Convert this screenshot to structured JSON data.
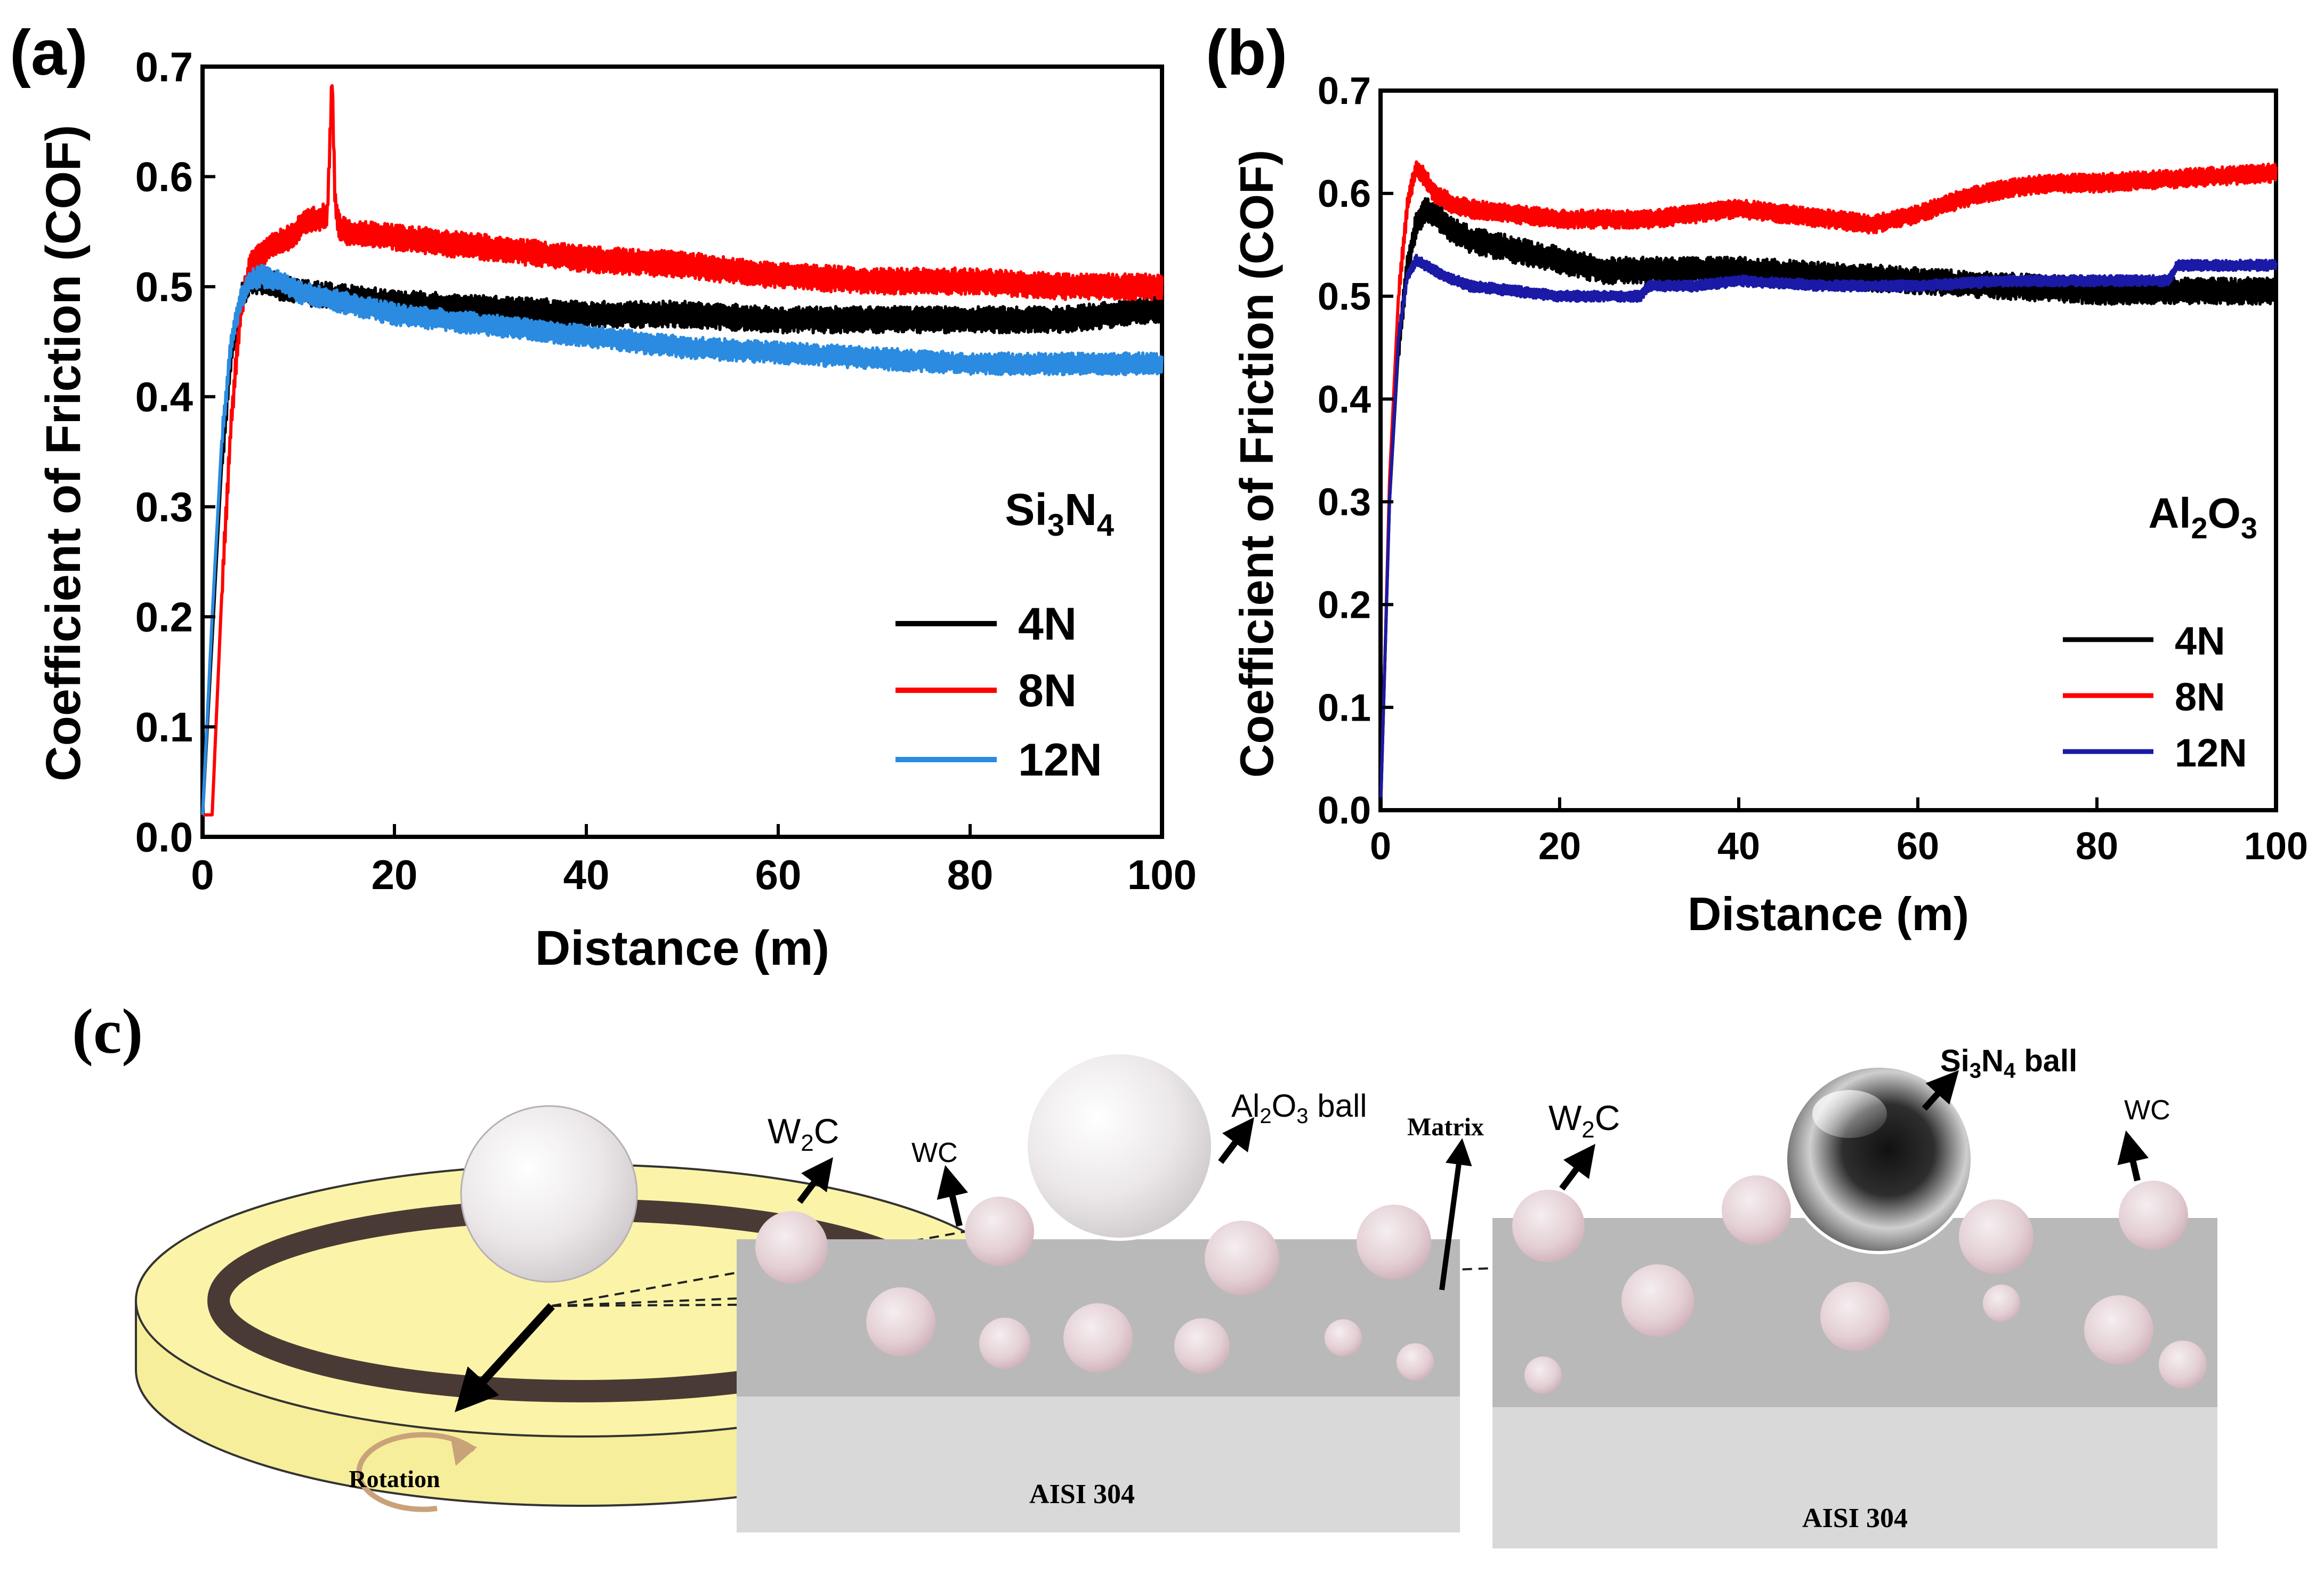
{
  "panel_labels": {
    "a": "(a)",
    "b": "(b)",
    "c": "(c)"
  },
  "chart_data": [
    {
      "type": "line",
      "panel": "(a)",
      "material": {
        "base": "Si",
        "sub1": "3",
        "mid": "N",
        "sub2": "4"
      },
      "xlabel": "Distance (m)",
      "ylabel": "Coefficient of Friction (COF)",
      "xlim": [
        0,
        100
      ],
      "ylim": [
        0,
        0.7
      ],
      "xticks": [
        0,
        20,
        40,
        60,
        80,
        100
      ],
      "yticks": [
        0.0,
        0.1,
        0.2,
        0.3,
        0.4,
        0.5,
        0.6,
        0.7
      ],
      "xtick_labels": [
        "0",
        "20",
        "40",
        "60",
        "80",
        "100"
      ],
      "ytick_labels": [
        "0.0",
        "0.1",
        "0.2",
        "0.3",
        "0.4",
        "0.5",
        "0.6",
        "0.7"
      ],
      "legend_position": "right-middle",
      "series": [
        {
          "name": "4N",
          "color": "#000000",
          "noise": 0.012,
          "x": [
            0,
            1,
            2,
            3,
            4,
            5,
            6,
            8,
            10,
            15,
            20,
            30,
            40,
            50,
            60,
            70,
            80,
            90,
            95,
            100
          ],
          "y": [
            0.02,
            0.18,
            0.34,
            0.44,
            0.49,
            0.505,
            0.505,
            0.5,
            0.495,
            0.49,
            0.485,
            0.48,
            0.475,
            0.475,
            0.47,
            0.47,
            0.47,
            0.47,
            0.475,
            0.48
          ]
        },
        {
          "name": "8N",
          "color": "#ff0000",
          "noise": 0.012,
          "x": [
            0,
            0.5,
            1,
            1.3,
            1.6,
            2,
            3,
            4,
            5,
            7,
            9,
            11,
            13,
            13.5,
            13.8,
            14.2,
            15,
            20,
            30,
            40,
            50,
            60,
            70,
            80,
            90,
            100
          ],
          "y": [
            0.02,
            0.02,
            0.02,
            0.08,
            0.14,
            0.22,
            0.38,
            0.48,
            0.52,
            0.535,
            0.545,
            0.56,
            0.565,
            0.69,
            0.58,
            0.555,
            0.55,
            0.545,
            0.535,
            0.525,
            0.52,
            0.51,
            0.505,
            0.505,
            0.5,
            0.5
          ]
        },
        {
          "name": "12N",
          "color": "#2a8be0",
          "noise": 0.01,
          "x": [
            0,
            1,
            2,
            3,
            4,
            5,
            6,
            8,
            10,
            15,
            20,
            30,
            40,
            50,
            60,
            70,
            80,
            90,
            100
          ],
          "y": [
            0.02,
            0.2,
            0.36,
            0.45,
            0.49,
            0.505,
            0.51,
            0.505,
            0.495,
            0.485,
            0.475,
            0.465,
            0.455,
            0.445,
            0.44,
            0.435,
            0.43,
            0.43,
            0.43
          ]
        }
      ]
    },
    {
      "type": "line",
      "panel": "(b)",
      "material": {
        "base": "Al",
        "sub1": "2",
        "mid": "O",
        "sub2": "3"
      },
      "xlabel": "Distance (m)",
      "ylabel": "Coefficient of Friction (COF)",
      "xlim": [
        0,
        100
      ],
      "ylim": [
        0,
        0.7
      ],
      "xticks": [
        0,
        20,
        40,
        60,
        80,
        100
      ],
      "yticks": [
        0.0,
        0.1,
        0.2,
        0.3,
        0.4,
        0.5,
        0.6,
        0.7
      ],
      "xtick_labels": [
        "0",
        "20",
        "40",
        "60",
        "80",
        "100"
      ],
      "ytick_labels": [
        "0.0",
        "0.1",
        "0.2",
        "0.3",
        "0.4",
        "0.5",
        "0.6",
        "0.7"
      ],
      "legend_position": "bottom-right",
      "series": [
        {
          "name": "4N",
          "color": "#000000",
          "noise": 0.013,
          "x": [
            0,
            0.5,
            1,
            2,
            3,
            4,
            5,
            6,
            8,
            10,
            15,
            20,
            25,
            30,
            40,
            50,
            60,
            70,
            80,
            90,
            100
          ],
          "y": [
            0.0,
            0.15,
            0.3,
            0.45,
            0.53,
            0.57,
            0.585,
            0.58,
            0.565,
            0.555,
            0.545,
            0.535,
            0.525,
            0.525,
            0.525,
            0.52,
            0.515,
            0.51,
            0.505,
            0.505,
            0.505
          ]
        },
        {
          "name": "8N",
          "color": "#ff0000",
          "noise": 0.009,
          "x": [
            0,
            0.5,
            1,
            2,
            3,
            4,
            5,
            6,
            8,
            10,
            15,
            20,
            25,
            30,
            35,
            40,
            45,
            50,
            55,
            60,
            65,
            70,
            75,
            80,
            90,
            100
          ],
          "y": [
            0.0,
            0.15,
            0.32,
            0.5,
            0.59,
            0.625,
            0.615,
            0.6,
            0.59,
            0.585,
            0.58,
            0.575,
            0.575,
            0.575,
            0.58,
            0.585,
            0.58,
            0.575,
            0.57,
            0.58,
            0.595,
            0.605,
            0.61,
            0.61,
            0.615,
            0.62
          ]
        },
        {
          "name": "12N",
          "color": "#1a1aa6",
          "noise": 0.005,
          "x": [
            0,
            0.5,
            1,
            2,
            3,
            4,
            5,
            7,
            10,
            15,
            20,
            25,
            29,
            30,
            35,
            40,
            50,
            60,
            70,
            80,
            88,
            89,
            95,
            100
          ],
          "y": [
            0.0,
            0.15,
            0.3,
            0.46,
            0.52,
            0.535,
            0.53,
            0.52,
            0.51,
            0.505,
            0.5,
            0.5,
            0.5,
            0.51,
            0.51,
            0.515,
            0.51,
            0.51,
            0.515,
            0.515,
            0.515,
            0.53,
            0.53,
            0.53
          ]
        }
      ]
    }
  ],
  "schematic": {
    "rotation_label": "Rotation",
    "left_block": {
      "w2c": {
        "base": "W",
        "sub": "2",
        "tail": "C"
      },
      "wc": "WC",
      "ball": {
        "base": "Al",
        "sub1": "2",
        "mid": "O",
        "sub2": "3",
        "tail": " ball"
      },
      "matrix": "Matrix",
      "substrate": "AISI 304"
    },
    "right_block": {
      "w2c": {
        "base": "W",
        "sub": "2",
        "tail": "C"
      },
      "wc": "WC",
      "ball": {
        "base": "Si",
        "sub1": "3",
        "mid": "N",
        "sub2": "4",
        "tail": " ball"
      },
      "substrate": "AISI 304"
    }
  }
}
